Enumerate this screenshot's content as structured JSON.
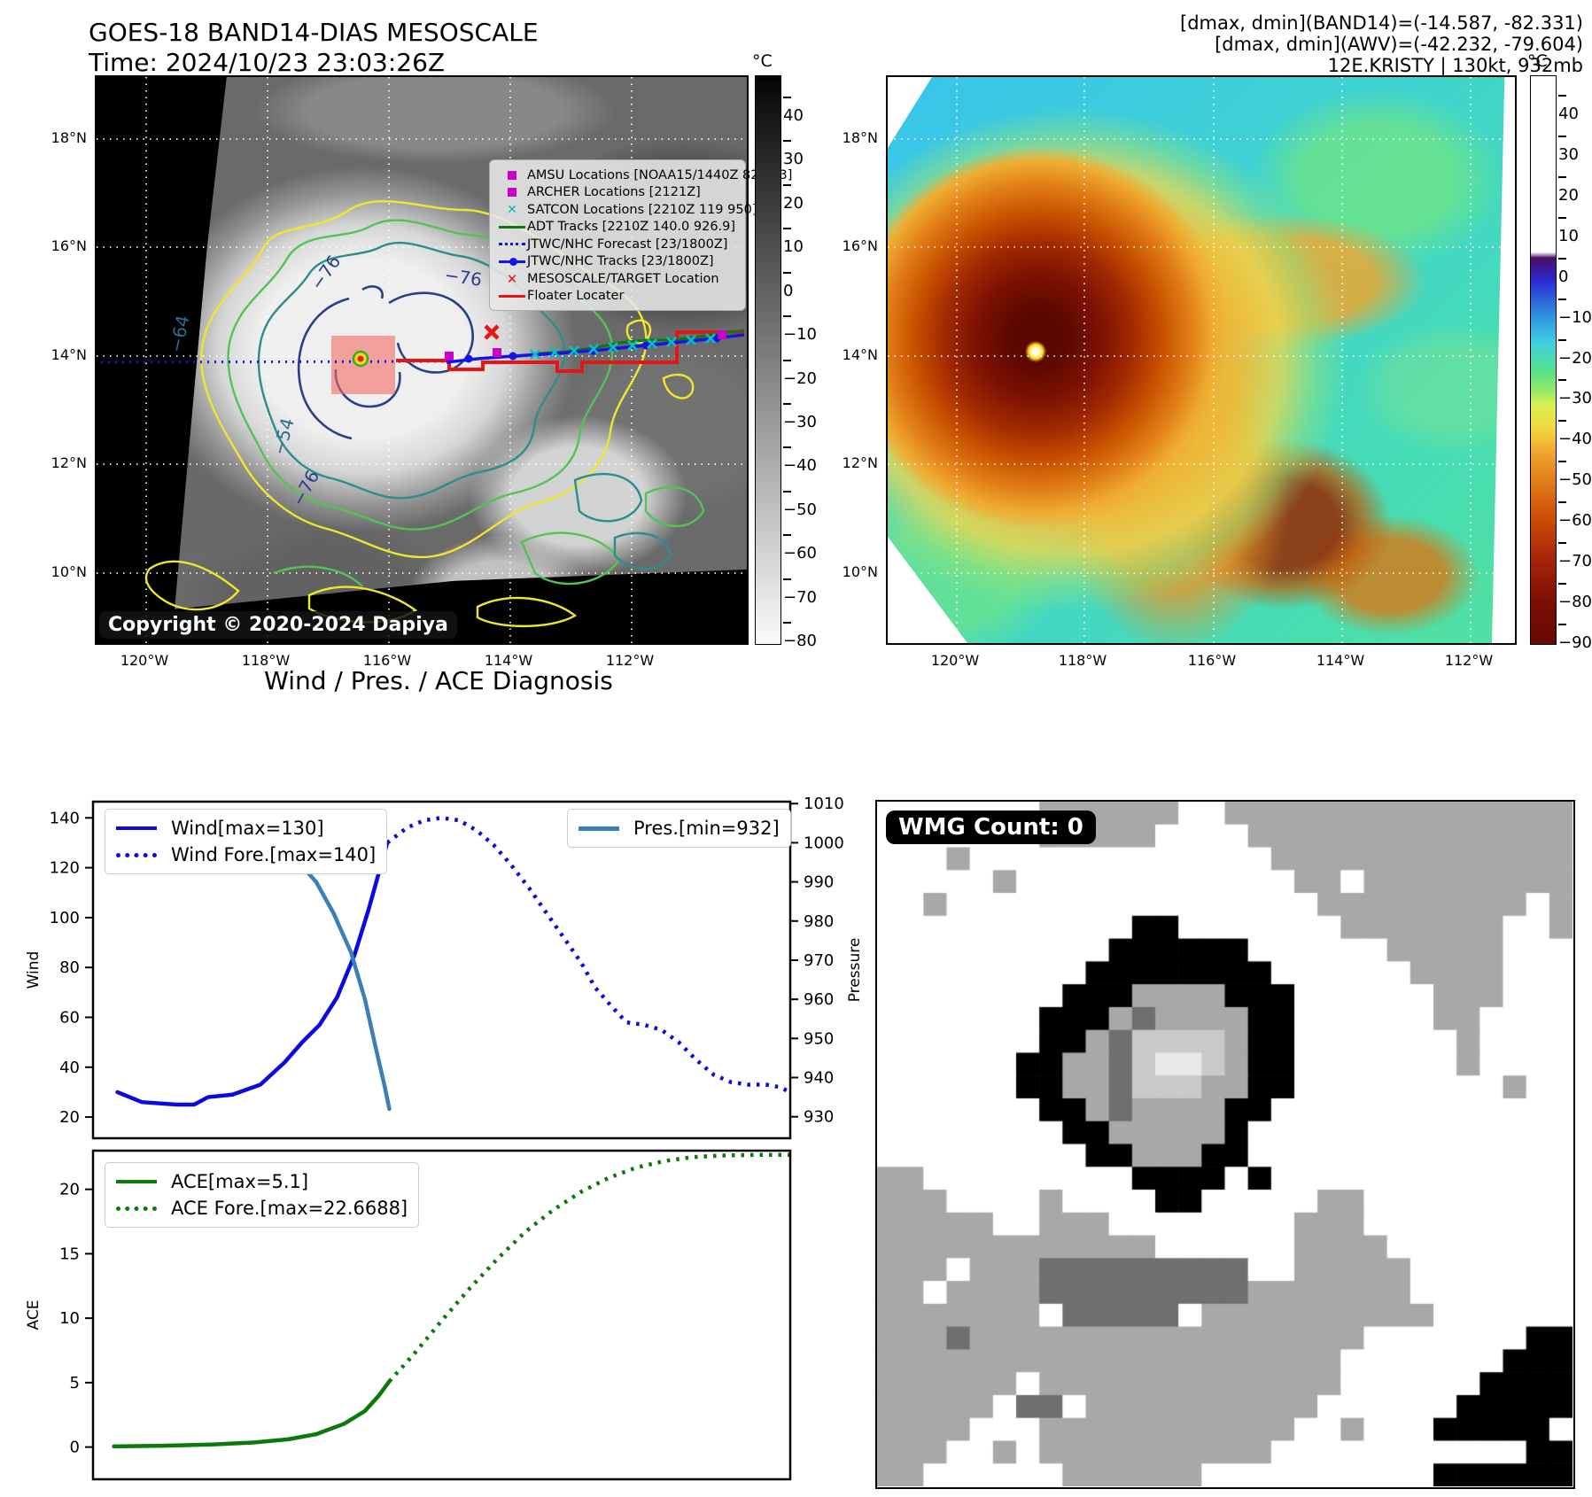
{
  "header": {
    "title_line1": "GOES-18 BAND14-DIAS MESOSCALE",
    "title_line2": "Time: 2024/10/23 23:03:26Z",
    "info_line1": "[dmax, dmin](BAND14)=(-14.587, -82.331)",
    "info_line2": "[dmax, dmin](AWV)=(-42.232, -79.604)",
    "info_line3": "12E.KRISTY | 130kt, 932mb"
  },
  "map_left": {
    "legend": [
      {
        "label": "AMSU Locations [NOAA15/1440Z 82 983]",
        "marker": "square",
        "color": "#cc00cc"
      },
      {
        "label": "ARCHER Locations [2121Z]",
        "marker": "square",
        "color": "#cc00cc"
      },
      {
        "label": "SATCON Locations [2210Z 119 950]",
        "marker": "x",
        "color": "#00b8b8"
      },
      {
        "label": "ADT Tracks [2210Z 140.0 926.9]",
        "marker": "line",
        "color": "#0b7a0b"
      },
      {
        "label": "JTWC/NHC Forecast [23/1800Z]",
        "marker": "dotted-line",
        "color": "#1414e8"
      },
      {
        "label": "JTWC/NHC Tracks [23/1800Z]",
        "marker": "line-dot",
        "color": "#1414e8"
      },
      {
        "label": "MESOSCALE/TARGET Location",
        "marker": "x",
        "color": "#e81414"
      },
      {
        "label": "Floater Locater",
        "marker": "line",
        "color": "#e81414"
      }
    ],
    "copyright": "Copyright © 2020-2024 Dapiya",
    "contour_labels": [
      "−76",
      "−76",
      "−64",
      "−54",
      "−76"
    ],
    "lat_ticks": [
      "18°N",
      "16°N",
      "14°N",
      "12°N",
      "10°N"
    ],
    "lon_ticks": [
      "120°W",
      "118°W",
      "116°W",
      "114°W",
      "112°W"
    ],
    "colorbar": {
      "unit": "°C",
      "tick_labels": [
        "40",
        "30",
        "20",
        "10",
        "0",
        "−10",
        "−20",
        "−30",
        "−40",
        "−50",
        "−60",
        "−70",
        "−80"
      ],
      "tick_values": [
        40,
        30,
        20,
        10,
        0,
        -10,
        -20,
        -30,
        -40,
        -50,
        -60,
        -70,
        -80
      ],
      "vmax": 45,
      "range": 130
    }
  },
  "map_right": {
    "lat_ticks": [
      "18°N",
      "16°N",
      "14°N",
      "12°N",
      "10°N"
    ],
    "lon_ticks": [
      "120°W",
      "118°W",
      "116°W",
      "114°W",
      "112°W"
    ],
    "colorbar": {
      "unit": "°C",
      "tick_labels": [
        "40",
        "30",
        "20",
        "10",
        "0",
        "−10",
        "−20",
        "−30",
        "−40",
        "−50",
        "−60",
        "−70",
        "−80",
        "−90"
      ],
      "tick_values": [
        40,
        30,
        20,
        10,
        0,
        -10,
        -20,
        -30,
        -40,
        -50,
        -60,
        -70,
        -80,
        -90
      ],
      "vmax": 45,
      "range": 140
    }
  },
  "chart_data": [
    {
      "type": "line",
      "title": "Wind / Pres. / ACE Diagnosis",
      "x_domain": [
        0,
        1
      ],
      "left_axis": {
        "label": "Wind",
        "ticks": [
          20,
          40,
          60,
          80,
          100,
          120,
          140
        ],
        "ylim": [
          11.5,
          146.5
        ]
      },
      "right_axis": {
        "label": "Pressure",
        "ticks": [
          930,
          940,
          950,
          960,
          970,
          980,
          990,
          1000,
          1010
        ],
        "ylim": [
          924.5,
          1010.5
        ]
      },
      "legend_left": [
        "Wind[max=130]",
        "Wind Fore.[max=140]"
      ],
      "legend_right": [
        "Pres.[min=932]"
      ],
      "series": [
        {
          "name": "Wind[max=130]",
          "style": "solid",
          "color": "#0a0adf",
          "axis": "left",
          "x": [
            0.035,
            0.07,
            0.12,
            0.145,
            0.165,
            0.2,
            0.24,
            0.275,
            0.3,
            0.325,
            0.35,
            0.375,
            0.395,
            0.41,
            0.422
          ],
          "y": [
            30,
            26,
            25,
            25,
            28,
            29,
            33,
            42,
            50,
            57,
            68,
            85,
            103,
            118,
            130
          ]
        },
        {
          "name": "Wind Fore.[max=140]",
          "style": "dotted",
          "color": "#0a0adf",
          "axis": "left",
          "x": [
            0.422,
            0.45,
            0.475,
            0.5,
            0.525,
            0.55,
            0.575,
            0.6,
            0.625,
            0.65,
            0.675,
            0.7,
            0.72,
            0.745,
            0.765,
            0.79,
            0.815,
            0.84,
            0.865,
            0.89,
            0.915,
            0.94,
            0.965,
            0.985,
            1.0
          ],
          "y": [
            130,
            136,
            139,
            140,
            139,
            135,
            129,
            121,
            112,
            102,
            92,
            82,
            72,
            64,
            58,
            57,
            55,
            50,
            43,
            37,
            34,
            33,
            33,
            32,
            30
          ]
        },
        {
          "name": "Pres.[min=932]",
          "style": "solid",
          "color": "#3b7fb5",
          "axis": "right",
          "x": [
            0.02,
            0.06,
            0.1,
            0.14,
            0.17,
            0.2,
            0.23,
            0.26,
            0.29,
            0.32,
            0.345,
            0.37,
            0.39,
            0.405,
            0.418,
            0.425
          ],
          "y": [
            1006,
            1007,
            1007,
            1007,
            1006,
            1005,
            1003,
            1000,
            996,
            990,
            982,
            972,
            960,
            948,
            938,
            932
          ]
        }
      ]
    },
    {
      "type": "line",
      "title": "",
      "x_domain": [
        0,
        1
      ],
      "left_axis": {
        "label": "ACE",
        "ticks": [
          0,
          5,
          10,
          15,
          20
        ],
        "ylim": [
          -2.5,
          23.0
        ]
      },
      "legend_left": [
        "ACE[max=5.1]",
        "ACE Fore.[max=22.6688]"
      ],
      "series": [
        {
          "name": "ACE[max=5.1]",
          "style": "solid",
          "color": "#0b7a0b",
          "axis": "left",
          "x": [
            0.03,
            0.1,
            0.17,
            0.23,
            0.28,
            0.32,
            0.36,
            0.39,
            0.41,
            0.425
          ],
          "y": [
            0.05,
            0.1,
            0.2,
            0.35,
            0.6,
            1.0,
            1.8,
            2.8,
            4.0,
            5.1
          ]
        },
        {
          "name": "ACE Fore.[max=22.6688]",
          "style": "dotted",
          "color": "#0b7a0b",
          "axis": "left",
          "x": [
            0.425,
            0.46,
            0.5,
            0.54,
            0.58,
            0.62,
            0.66,
            0.7,
            0.74,
            0.78,
            0.82,
            0.86,
            0.9,
            0.95,
            1.0
          ],
          "y": [
            5.1,
            7.2,
            9.8,
            12.3,
            14.6,
            16.7,
            18.4,
            19.8,
            20.9,
            21.7,
            22.2,
            22.5,
            22.62,
            22.67,
            22.67
          ]
        }
      ]
    }
  ],
  "wmg": {
    "label": "WMG Count: 0",
    "palette": {
      ".": "#ffffff",
      "g": "#a8a8a8",
      "d": "#6f6f6f",
      "b": "#000000",
      "l": "#c9c9c9",
      "w": "#e8e8e8"
    },
    "grid": [
      ".......gggggg..ggggggggggggggg",
      ".......ggggg....gggggggggggggg",
      "...g.............ggggggggggggg",
      ".....g............gg.ggggggggg",
      "..g................ggggggggg.g",
      "...........bb.......ggggggg..g",
      "..........bbbbbb......ggggg...",
      ".........bbbbbbbb......gggg...",
      "........bbbggggbbb......ggg...",
      ".......bbbgdggggbb......gg....",
      ".......bbgdllllgbb.......g....",
      "......bbggdlwwlgbb.......g....",
      "......bbggdlllggbb.........g..",
      ".......bbgdggggbb.............",
      "........bbgggggb..............",
      ".........bbgggbb..............",
      "gg.........bbbb.b.............",
      "ggg....g....bb.....gg.........",
      "ggggg..ggg........ggg.........",
      "gggggggggggg......gggg........",
      "ggg.gggddddddddd..ggggg.......",
      "gg.ggggdddddddddggggggg.......",
      "ggggggg.ddddd.gggggggggg......",
      "gggdggggggggggggggggg.......bb",
      "gggggggggggggggggggg.......bbb",
      "gggggg.ggggggggggggg......bbbb",
      "ggggg.dd.gggggggggg......bbbbb",
      "gggg...ggggggggggg..g...bbbbb.",
      "ggg..g.gggggggggg...........bbb",
      "gg......gggggg..........bbbbbb"
    ]
  }
}
